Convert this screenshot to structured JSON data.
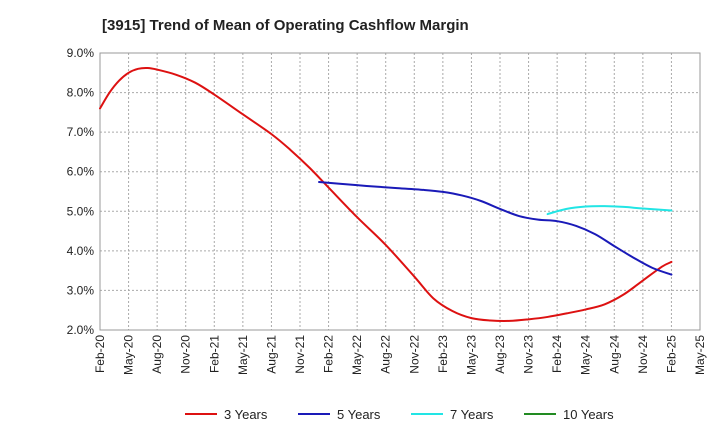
{
  "chart_data": {
    "type": "line",
    "title": "[3915]  Trend of Mean of Operating Cashflow Margin",
    "xlabel": "",
    "ylabel": "",
    "ylim": [
      2.0,
      9.0
    ],
    "y_ticks": [
      2.0,
      3.0,
      4.0,
      5.0,
      6.0,
      7.0,
      8.0,
      9.0
    ],
    "y_tick_labels": [
      "2.0%",
      "3.0%",
      "4.0%",
      "5.0%",
      "6.0%",
      "7.0%",
      "8.0%",
      "9.0%"
    ],
    "x_range": [
      0,
      63
    ],
    "x_tick_positions": [
      0,
      3,
      6,
      9,
      12,
      15,
      18,
      21,
      24,
      27,
      30,
      33,
      36,
      39,
      42,
      45,
      48,
      51,
      54,
      57,
      60,
      63
    ],
    "categories": [
      "Feb-20",
      "May-20",
      "Aug-20",
      "Nov-20",
      "Feb-21",
      "May-21",
      "Aug-21",
      "Nov-21",
      "Feb-22",
      "May-22",
      "Aug-22",
      "Nov-22",
      "Feb-23",
      "May-23",
      "Aug-23",
      "Nov-23",
      "Feb-24",
      "May-24",
      "Aug-24",
      "Nov-24",
      "Feb-25",
      "May-25"
    ],
    "grid": true,
    "legend_position": "bottom",
    "series": [
      {
        "name": "3 Years",
        "color": "#dd1111",
        "x": [
          0,
          1,
          2,
          3,
          4,
          5,
          6,
          8,
          10,
          12,
          15,
          18,
          20,
          22,
          24,
          27,
          30,
          33,
          35,
          37,
          39,
          41,
          43,
          45,
          47,
          49,
          51,
          53,
          55,
          57,
          59,
          60
        ],
        "values": [
          7.6,
          8.0,
          8.3,
          8.5,
          8.6,
          8.62,
          8.58,
          8.45,
          8.25,
          7.95,
          7.45,
          6.95,
          6.55,
          6.1,
          5.6,
          4.85,
          4.15,
          3.35,
          2.8,
          2.48,
          2.3,
          2.24,
          2.23,
          2.27,
          2.33,
          2.42,
          2.52,
          2.65,
          2.9,
          3.25,
          3.6,
          3.72
        ]
      },
      {
        "name": "5 Years",
        "color": "#1a1ab8",
        "x": [
          23,
          25,
          28,
          31,
          34,
          36,
          38,
          40,
          42,
          44,
          46,
          48,
          50,
          52,
          54,
          56,
          58,
          60
        ],
        "values": [
          5.74,
          5.7,
          5.64,
          5.59,
          5.54,
          5.49,
          5.4,
          5.26,
          5.06,
          4.88,
          4.79,
          4.75,
          4.63,
          4.42,
          4.12,
          3.83,
          3.57,
          3.4
        ]
      },
      {
        "name": "7 Years",
        "color": "#22e5e5",
        "x": [
          47,
          49,
          51,
          53,
          55,
          57,
          60
        ],
        "values": [
          4.93,
          5.06,
          5.12,
          5.13,
          5.11,
          5.07,
          5.02
        ]
      },
      {
        "name": "10 Years",
        "color": "#228b22",
        "x": [],
        "values": []
      }
    ]
  }
}
